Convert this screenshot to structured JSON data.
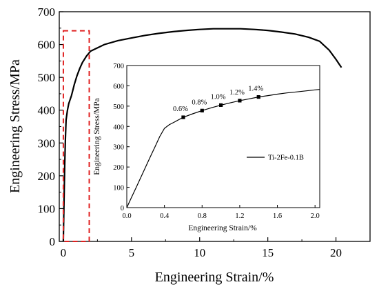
{
  "chart_data": [
    {
      "type": "line",
      "name": "main",
      "xlabel": "Engineering Strain/%",
      "ylabel": "Engineering Stress/MPa",
      "xlim": [
        -0.3,
        22.5
      ],
      "ylim": [
        0,
        700
      ],
      "xticks": [
        0,
        5,
        10,
        15,
        20
      ],
      "yticks": [
        0,
        100,
        200,
        300,
        400,
        500,
        600,
        700
      ],
      "grid": false,
      "series": [
        {
          "x": [
            0.0,
            0.05,
            0.1,
            0.15,
            0.2,
            0.3,
            0.4,
            0.6,
            0.8,
            1.0,
            1.2,
            1.4,
            1.7,
            2.0,
            3.0,
            4.0,
            5.0,
            6.0,
            7.0,
            8.0,
            9.0,
            10.0,
            11.0,
            12.0,
            13.0,
            14.0,
            15.0,
            16.0,
            17.0,
            18.0,
            18.8,
            19.5,
            20.0,
            20.4
          ],
          "y": [
            0,
            120,
            230,
            310,
            370,
            400,
            420,
            445,
            478,
            505,
            527,
            545,
            565,
            580,
            600,
            612,
            620,
            628,
            634,
            639,
            643,
            646,
            648,
            648,
            648,
            646,
            643,
            638,
            632,
            622,
            610,
            583,
            555,
            530
          ]
        }
      ],
      "annotations": [
        {
          "type": "dashed-rectangle",
          "color": "#e02020",
          "x": [
            0,
            1.9
          ],
          "y": [
            0,
            642
          ]
        }
      ]
    },
    {
      "type": "line",
      "name": "inset",
      "xlabel": "Engineering Strain/%",
      "ylabel": "Engineering Stress/MPa",
      "xlim": [
        0.0,
        2.05
      ],
      "ylim": [
        0,
        700
      ],
      "xticks": [
        "0.0",
        "0.4",
        "0.8",
        "1.2",
        "1.6",
        "2.0"
      ],
      "xtick_values": [
        0.0,
        0.4,
        0.8,
        1.2,
        1.6,
        2.0
      ],
      "yticks": [
        0,
        100,
        200,
        300,
        400,
        500,
        600,
        700
      ],
      "grid": false,
      "legend": {
        "position": "center-right",
        "entries": [
          "Ti-2Fe-0.1B"
        ]
      },
      "series": [
        {
          "name": "Ti-2Fe-0.1B",
          "x": [
            0.0,
            0.05,
            0.1,
            0.15,
            0.2,
            0.25,
            0.3,
            0.35,
            0.4,
            0.45,
            0.5,
            0.6,
            0.7,
            0.8,
            0.9,
            1.0,
            1.1,
            1.2,
            1.3,
            1.4,
            1.5,
            1.6,
            1.7,
            1.8,
            1.9,
            2.0,
            2.05
          ],
          "y": [
            0,
            50,
            100,
            150,
            200,
            250,
            300,
            350,
            390,
            408,
            420,
            445,
            462,
            478,
            492,
            505,
            516,
            527,
            536,
            545,
            552,
            559,
            565,
            570,
            575,
            580,
            582
          ]
        }
      ],
      "markers": [
        {
          "x": 0.6,
          "y": 445,
          "label": "0.6%"
        },
        {
          "x": 0.8,
          "y": 478,
          "label": "0.8%"
        },
        {
          "x": 1.0,
          "y": 505,
          "label": "1.0%"
        },
        {
          "x": 1.2,
          "y": 527,
          "label": "1.2%"
        },
        {
          "x": 1.4,
          "y": 545,
          "label": "1.4%"
        }
      ]
    }
  ]
}
